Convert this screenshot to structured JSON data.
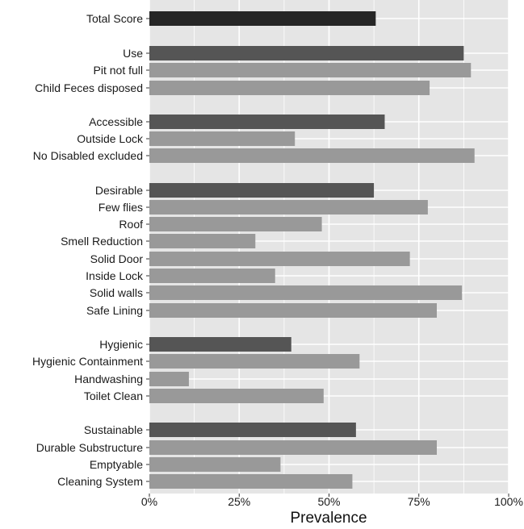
{
  "chart_data": {
    "type": "bar",
    "orientation": "horizontal",
    "xlabel": "Prevalence",
    "ylabel": "",
    "xlim": [
      0,
      100
    ],
    "x_ticks": [
      "0%",
      "25%",
      "50%",
      "75%",
      "100%"
    ],
    "grid": true,
    "legend": "none",
    "colors": {
      "panel_background": "#e5e5e5",
      "gridline": "#ffffff",
      "total_bar": "#262626",
      "domain_bar": "#555555",
      "indicator_bar": "#999999"
    },
    "categories": [
      {
        "label": "Total Score",
        "value": 63,
        "level": "total"
      },
      {
        "label": "Use",
        "value": 87.5,
        "level": "domain"
      },
      {
        "label": "Pit not full",
        "value": 89.5,
        "level": "indicator"
      },
      {
        "label": "Child Feces disposed",
        "value": 78,
        "level": "indicator"
      },
      {
        "label": "Accessible",
        "value": 65.5,
        "level": "domain"
      },
      {
        "label": "Outside Lock",
        "value": 40.5,
        "level": "indicator"
      },
      {
        "label": "No Disabled excluded",
        "value": 90.5,
        "level": "indicator"
      },
      {
        "label": "Desirable",
        "value": 62.5,
        "level": "domain"
      },
      {
        "label": "Few flies",
        "value": 77.5,
        "level": "indicator"
      },
      {
        "label": "Roof",
        "value": 48,
        "level": "indicator"
      },
      {
        "label": "Smell Reduction",
        "value": 29.5,
        "level": "indicator"
      },
      {
        "label": "Solid Door",
        "value": 72.5,
        "level": "indicator"
      },
      {
        "label": "Inside Lock",
        "value": 35,
        "level": "indicator"
      },
      {
        "label": "Solid walls",
        "value": 87,
        "level": "indicator"
      },
      {
        "label": "Safe Lining",
        "value": 80,
        "level": "indicator"
      },
      {
        "label": "Hygienic",
        "value": 39.5,
        "level": "domain"
      },
      {
        "label": "Hygienic Containment",
        "value": 58.5,
        "level": "indicator"
      },
      {
        "label": "Handwashing",
        "value": 11,
        "level": "indicator"
      },
      {
        "label": "Toilet Clean",
        "value": 48.5,
        "level": "indicator"
      },
      {
        "label": "Sustainable",
        "value": 57.5,
        "level": "domain"
      },
      {
        "label": "Durable Substructure",
        "value": 80,
        "level": "indicator"
      },
      {
        "label": "Emptyable",
        "value": 36.5,
        "level": "indicator"
      },
      {
        "label": "Cleaning System",
        "value": 56.5,
        "level": "indicator"
      }
    ]
  }
}
